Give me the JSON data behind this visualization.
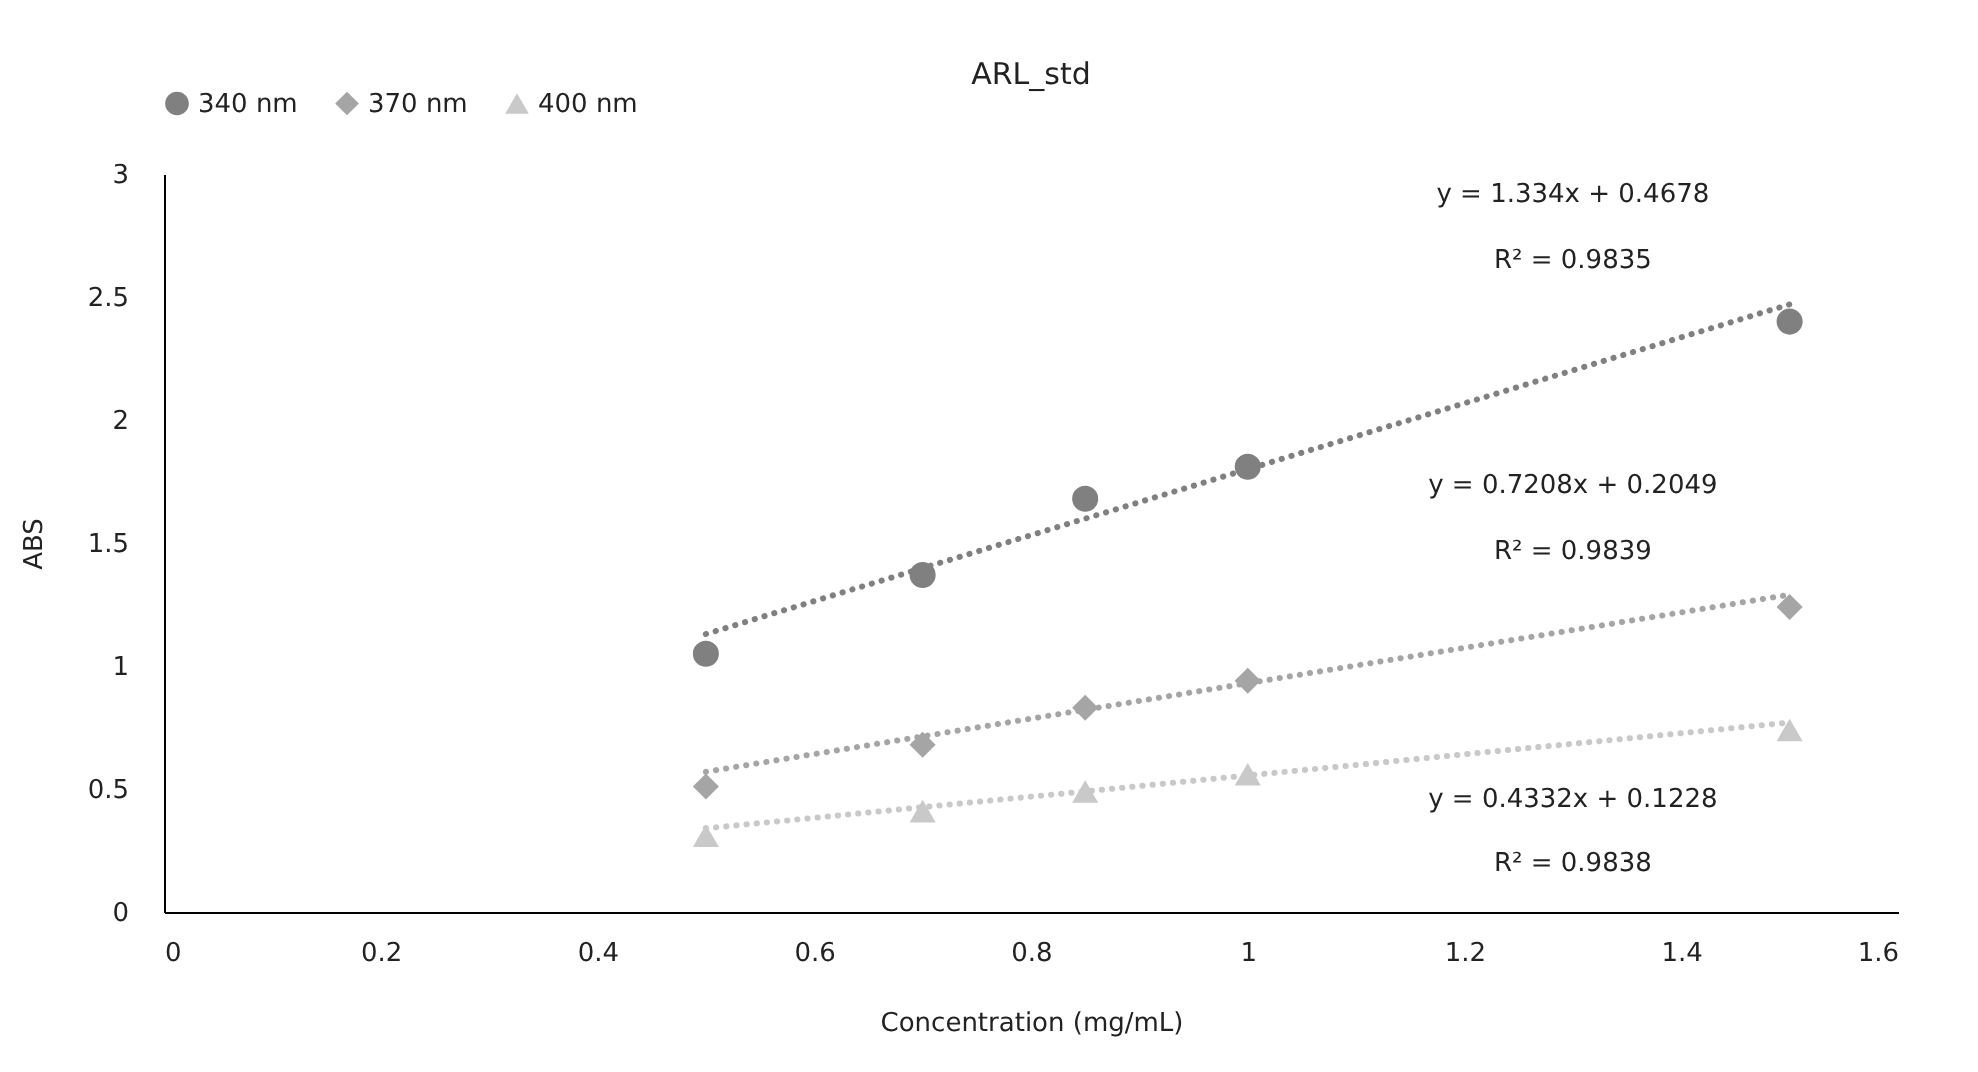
{
  "chart_data": {
    "type": "scatter",
    "title": "ARL_std",
    "xlabel": "Concentration (mg/mL)",
    "ylabel": "ABS",
    "xlim": [
      0,
      1.6
    ],
    "xticks": [
      0,
      0.2,
      0.4,
      0.6,
      0.8,
      1,
      1.2,
      1.4,
      1.6
    ],
    "ylim": [
      0,
      3
    ],
    "yticks": [
      0,
      0.5,
      1,
      1.5,
      2,
      2.5,
      3
    ],
    "grid": false,
    "legend": "top",
    "series": [
      {
        "name": "340 nm",
        "marker": "circle",
        "color": "#808080",
        "x": [
          0.5,
          0.7,
          0.85,
          1,
          1.5
        ],
        "values": [
          1.05,
          1.37,
          1.68,
          1.81,
          2.4
        ]
      },
      {
        "name": "370 nm",
        "marker": "diamond",
        "color": "#a5a5a5",
        "x": [
          0.5,
          0.7,
          0.85,
          1,
          1.5
        ],
        "values": [
          0.51,
          0.68,
          0.83,
          0.94,
          1.24
        ]
      },
      {
        "name": "400 nm",
        "marker": "triangle",
        "color": "#c9c9c9",
        "x": [
          0.5,
          0.7,
          0.85,
          1,
          1.5
        ],
        "values": [
          0.31,
          0.41,
          0.49,
          0.56,
          0.74
        ]
      },
      {
        "type": "line",
        "line_style": "dotted",
        "color": "#808080",
        "x": [
          0.5,
          1.5
        ],
        "values": [
          1.13,
          2.47
        ]
      },
      {
        "type": "line",
        "line_style": "dotted",
        "color": "#a5a5a5",
        "x": [
          0.5,
          1.5
        ],
        "values": [
          0.57,
          1.29
        ]
      },
      {
        "type": "line",
        "line_style": "dotted",
        "color": "#c9c9c9",
        "x": [
          0.5,
          1.5
        ],
        "values": [
          0.34,
          0.77
        ]
      }
    ],
    "annotations": [
      "y = 1.334x + 0.4678",
      "R² = 0.9835",
      "y = 0.7208x + 0.2049",
      "R² = 0.9839",
      "y = 0.4332x + 0.1228",
      "R² = 0.9838"
    ]
  }
}
